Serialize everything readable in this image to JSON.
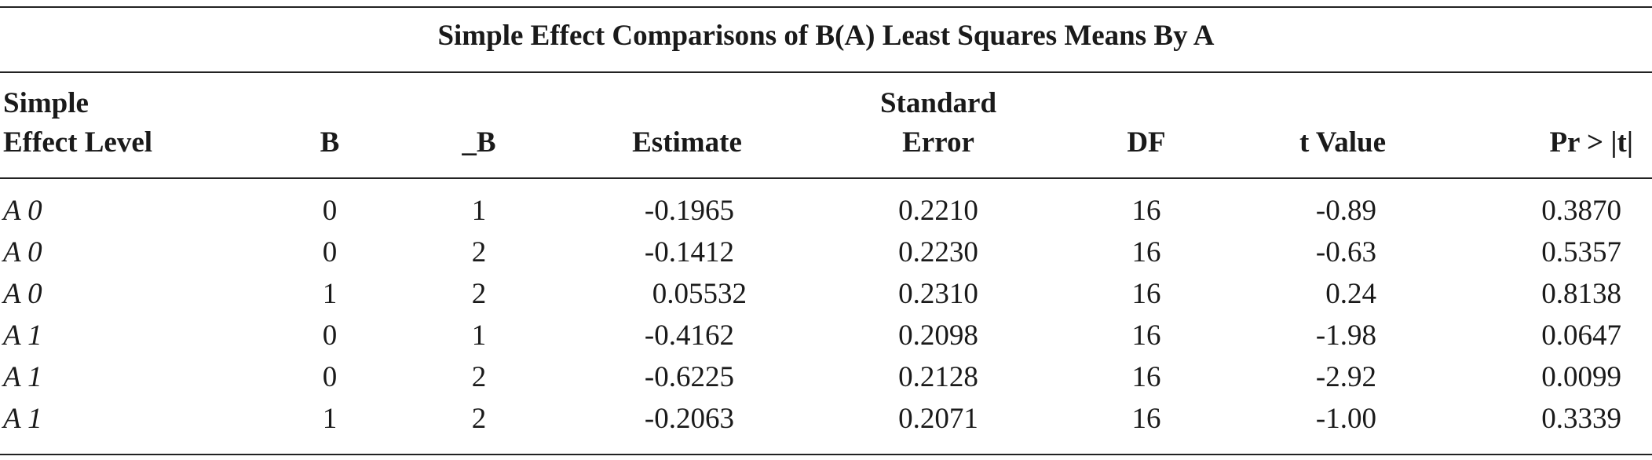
{
  "title": "Simple Effect Comparisons of B(A) Least Squares Means By A",
  "headers": {
    "level_line1": "Simple",
    "level_line2": "Effect Level",
    "b": "B",
    "b2": "_B",
    "estimate": "Estimate",
    "se_line1": "Standard",
    "se_line2": "Error",
    "df": "DF",
    "t": "t Value",
    "p": "Pr > |t|"
  },
  "rows": [
    {
      "level": "A 0",
      "b": "0",
      "b2": "1",
      "estimate": "-0.1965",
      "se": "0.2210",
      "df": "16",
      "t": "-0.89",
      "p": "0.3870"
    },
    {
      "level": "A 0",
      "b": "0",
      "b2": "2",
      "estimate": "-0.1412",
      "se": "0.2230",
      "df": "16",
      "t": "-0.63",
      "p": "0.5357"
    },
    {
      "level": "A 0",
      "b": "1",
      "b2": "2",
      "estimate": "0.05532",
      "se": "0.2310",
      "df": "16",
      "t": "0.24",
      "p": "0.8138"
    },
    {
      "level": "A 1",
      "b": "0",
      "b2": "1",
      "estimate": "-0.4162",
      "se": "0.2098",
      "df": "16",
      "t": "-1.98",
      "p": "0.0647"
    },
    {
      "level": "A 1",
      "b": "0",
      "b2": "2",
      "estimate": "-0.6225",
      "se": "0.2128",
      "df": "16",
      "t": "-2.92",
      "p": "0.0099"
    },
    {
      "level": "A 1",
      "b": "1",
      "b2": "2",
      "estimate": "-0.2063",
      "se": "0.2071",
      "df": "16",
      "t": "-1.00",
      "p": "0.3339"
    }
  ]
}
